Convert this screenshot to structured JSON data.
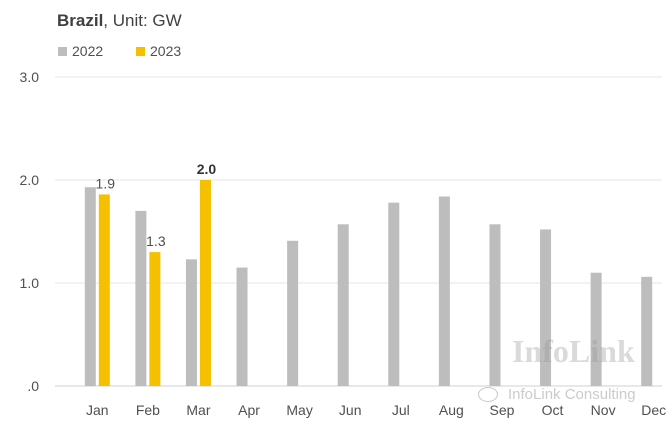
{
  "title": {
    "region": "Brazil",
    "unit": ", Unit: GW"
  },
  "colors": {
    "s2022": "#bdbdbd",
    "s2023": "#f5c000",
    "grid": "#e6e6e6"
  },
  "watermark": {
    "main": "InfoLink",
    "sub": "InfoLink Consulting",
    "icon": "wechat-icon"
  },
  "chart_data": {
    "type": "bar",
    "categories": [
      "Jan",
      "Feb",
      "Mar",
      "Apr",
      "May",
      "Jun",
      "Jul",
      "Aug",
      "Sep",
      "Oct",
      "Nov",
      "Dec"
    ],
    "series": [
      {
        "name": "2022",
        "values": [
          1.93,
          1.7,
          1.23,
          1.15,
          1.41,
          1.57,
          1.78,
          1.84,
          1.57,
          1.52,
          1.1,
          1.06
        ]
      },
      {
        "name": "2023",
        "values": [
          1.86,
          1.3,
          2.0,
          null,
          null,
          null,
          null,
          null,
          null,
          null,
          null,
          null
        ]
      }
    ],
    "data_labels": [
      {
        "series": 1,
        "index": 0,
        "text": "1.9",
        "bold": false
      },
      {
        "series": 1,
        "index": 1,
        "text": "1.3",
        "bold": false
      },
      {
        "series": 1,
        "index": 2,
        "text": "2.0",
        "bold": true
      }
    ],
    "y_ticks": [
      {
        "value": 0,
        "label": ".0"
      },
      {
        "value": 1,
        "label": "1.0"
      },
      {
        "value": 2,
        "label": "2.0"
      },
      {
        "value": 3,
        "label": "3.0"
      }
    ],
    "ylim": [
      0,
      3
    ],
    "grid": true,
    "legend": "top-left"
  }
}
